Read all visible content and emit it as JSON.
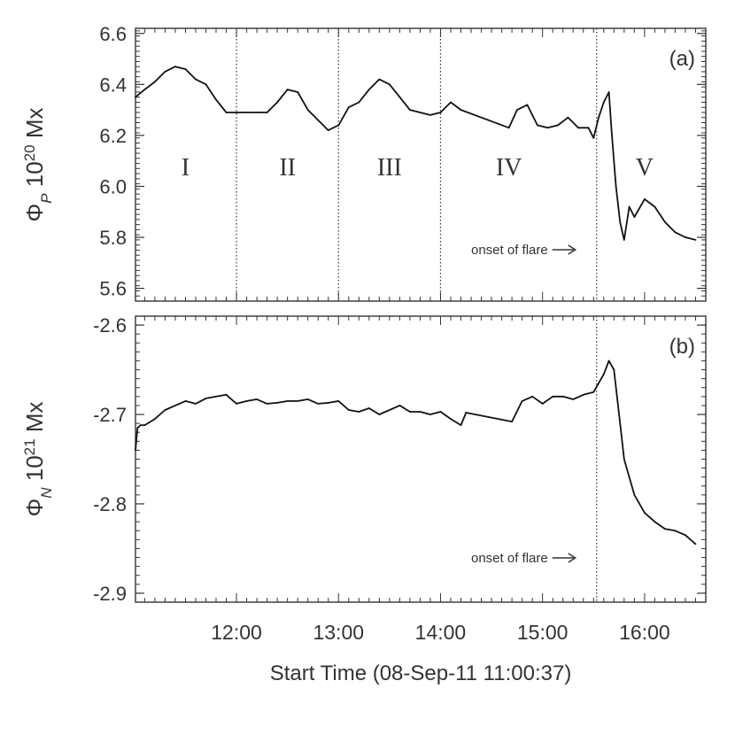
{
  "chart_data": [
    {
      "type": "line",
      "panel_label": "(a)",
      "ylabel": {
        "symbol": "Φ",
        "sub": "P",
        "mid": " 10",
        "sup": "20",
        "unit": " Mx"
      },
      "ylim": [
        5.55,
        6.62
      ],
      "yticks": [
        5.6,
        5.8,
        6.0,
        6.2,
        6.4,
        6.6
      ],
      "ytick_labels": [
        "5.6",
        "5.8",
        "6.0",
        "6.2",
        "6.4",
        "6.6"
      ],
      "xlim_hours": [
        11.01,
        16.6
      ],
      "vlines_hours": [
        12.0,
        13.0,
        14.0,
        15.53
      ],
      "regions": [
        {
          "label": "I",
          "x_hour": 11.5
        },
        {
          "label": "II",
          "x_hour": 12.5
        },
        {
          "label": "III",
          "x_hour": 13.5
        },
        {
          "label": "IV",
          "x_hour": 14.67
        },
        {
          "label": "V",
          "x_hour": 16.0
        }
      ],
      "annotation": "onset of flare",
      "series": [
        {
          "x_hours": [
            11.01,
            11.1,
            11.2,
            11.3,
            11.4,
            11.5,
            11.6,
            11.7,
            11.8,
            11.9,
            12.0,
            12.1,
            12.2,
            12.3,
            12.4,
            12.5,
            12.6,
            12.7,
            12.8,
            12.9,
            13.0,
            13.1,
            13.2,
            13.3,
            13.4,
            13.5,
            13.6,
            13.7,
            13.8,
            13.9,
            14.0,
            14.1,
            14.2,
            14.67,
            14.75,
            14.85,
            14.95,
            15.05,
            15.15,
            15.25,
            15.35,
            15.45,
            15.5,
            15.55,
            15.6,
            15.65,
            15.68,
            15.72,
            15.76,
            15.8,
            15.85,
            15.9,
            16.0,
            16.1,
            16.2,
            16.3,
            16.4,
            16.5
          ],
          "values": [
            6.35,
            6.38,
            6.41,
            6.45,
            6.47,
            6.46,
            6.42,
            6.4,
            6.34,
            6.29,
            6.29,
            6.29,
            6.29,
            6.29,
            6.33,
            6.38,
            6.37,
            6.3,
            6.26,
            6.22,
            6.24,
            6.31,
            6.33,
            6.38,
            6.42,
            6.4,
            6.35,
            6.3,
            6.29,
            6.28,
            6.29,
            6.33,
            6.3,
            6.23,
            6.3,
            6.32,
            6.24,
            6.23,
            6.24,
            6.27,
            6.23,
            6.23,
            6.19,
            6.27,
            6.33,
            6.37,
            6.2,
            6.0,
            5.86,
            5.79,
            5.92,
            5.88,
            5.95,
            5.92,
            5.86,
            5.82,
            5.8,
            5.79
          ]
        }
      ]
    },
    {
      "type": "line",
      "panel_label": "(b)",
      "ylabel": {
        "symbol": "Φ",
        "sub": "N",
        "mid": " 10",
        "sup": "21",
        "unit": " Mx"
      },
      "ylim": [
        -2.91,
        -2.59
      ],
      "yticks": [
        -2.9,
        -2.8,
        -2.7,
        -2.6
      ],
      "ytick_labels": [
        "-2.9",
        "-2.8",
        "-2.7",
        "-2.6"
      ],
      "xlim_hours": [
        11.01,
        16.6
      ],
      "vlines_hours": [
        15.53
      ],
      "annotation": "onset of flare",
      "xticks_hours": [
        12,
        13,
        14,
        15,
        16
      ],
      "xtick_labels": [
        "12:00",
        "13:00",
        "14:00",
        "15:00",
        "16:00"
      ],
      "xlabel": "Start Time (08-Sep-11 11:00:37)",
      "series": [
        {
          "x_hours": [
            11.01,
            11.03,
            11.06,
            11.1,
            11.2,
            11.3,
            11.4,
            11.5,
            11.6,
            11.7,
            11.8,
            11.9,
            12.0,
            12.1,
            12.2,
            12.3,
            12.4,
            12.5,
            12.6,
            12.7,
            12.8,
            12.9,
            13.0,
            13.1,
            13.2,
            13.3,
            13.4,
            13.5,
            13.6,
            13.7,
            13.8,
            13.9,
            14.0,
            14.1,
            14.2,
            14.25,
            14.7,
            14.8,
            14.9,
            15.0,
            15.1,
            15.2,
            15.3,
            15.4,
            15.5,
            15.55,
            15.6,
            15.65,
            15.7,
            15.75,
            15.8,
            15.85,
            15.9,
            16.0,
            16.1,
            16.2,
            16.3,
            16.4,
            16.5
          ],
          "values": [
            -2.74,
            -2.715,
            -2.712,
            -2.712,
            -2.705,
            -2.695,
            -2.69,
            -2.685,
            -2.688,
            -2.682,
            -2.68,
            -2.678,
            -2.688,
            -2.685,
            -2.683,
            -2.688,
            -2.687,
            -2.685,
            -2.685,
            -2.683,
            -2.688,
            -2.687,
            -2.685,
            -2.695,
            -2.697,
            -2.693,
            -2.7,
            -2.695,
            -2.69,
            -2.697,
            -2.697,
            -2.7,
            -2.697,
            -2.705,
            -2.712,
            -2.698,
            -2.708,
            -2.685,
            -2.68,
            -2.688,
            -2.68,
            -2.68,
            -2.683,
            -2.678,
            -2.675,
            -2.665,
            -2.655,
            -2.64,
            -2.65,
            -2.7,
            -2.75,
            -2.77,
            -2.79,
            -2.81,
            -2.82,
            -2.828,
            -2.83,
            -2.835,
            -2.845
          ]
        }
      ]
    }
  ]
}
